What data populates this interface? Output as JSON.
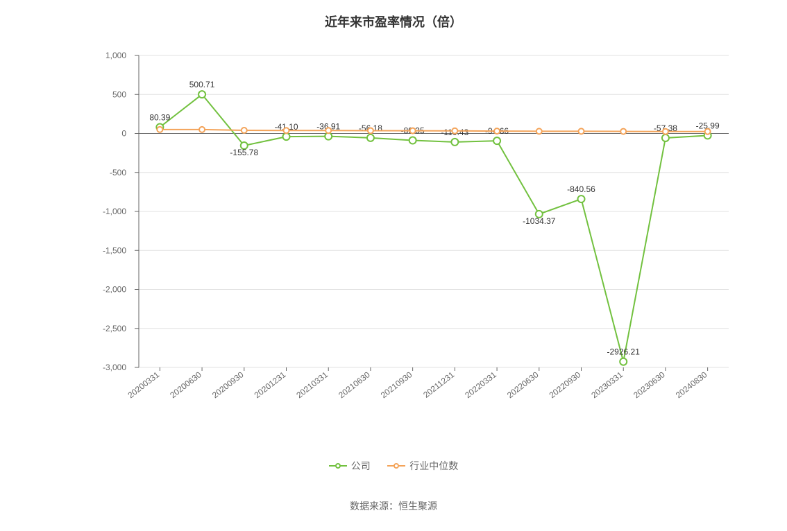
{
  "title": "近年来市盈率情况（倍）",
  "data_source": "数据来源：恒生聚源",
  "chart": {
    "type": "line",
    "background_color": "#ffffff",
    "grid_color": "#e0e0e0",
    "axis_color": "#666666",
    "tick_label_color": "#666666",
    "tick_label_fontsize": 12,
    "title_fontsize": 18,
    "title_color": "#333333",
    "data_label_fontsize": 12,
    "data_label_color": "#333333",
    "ylim": [
      -3000,
      1000
    ],
    "ytick_step": 500,
    "categories": [
      "20200331",
      "20200630",
      "20200930",
      "20201231",
      "20210331",
      "20210630",
      "20210930",
      "20211231",
      "20220331",
      "20220630",
      "20220930",
      "20230331",
      "20230630",
      "20240830"
    ],
    "series": [
      {
        "name": "公司",
        "color": "#72c13f",
        "line_width": 2,
        "marker": "circle",
        "marker_fill": "#ffffff",
        "marker_size": 5,
        "values": [
          80.39,
          500.71,
          -155.78,
          -41.1,
          -36.91,
          -56.18,
          -89.35,
          -110.43,
          -94.66,
          -1034.37,
          -840.56,
          -2926.21,
          -57.38,
          -25.99
        ],
        "data_label_anchor": [
          "middle",
          "middle",
          "middle",
          "end",
          "middle",
          "middle",
          "end",
          "middle",
          "start",
          "middle",
          "start",
          "start",
          "end",
          "start"
        ],
        "data_label_dy": [
          -10,
          -10,
          14,
          -10,
          -10,
          -10,
          -10,
          -10,
          -10,
          14,
          -10,
          -10,
          -10,
          -10
        ]
      },
      {
        "name": "行业中位数",
        "color": "#f4a45a",
        "line_width": 2,
        "marker": "circle",
        "marker_fill": "#ffffff",
        "marker_size": 4,
        "values": [
          50,
          50,
          40,
          38,
          38,
          36,
          35,
          33,
          30,
          28,
          28,
          26,
          25,
          25
        ],
        "show_data_labels": false
      }
    ]
  },
  "legend": {
    "position": "bottom",
    "items": [
      {
        "label": "公司",
        "color": "#72c13f"
      },
      {
        "label": "行业中位数",
        "color": "#f4a45a"
      }
    ]
  }
}
